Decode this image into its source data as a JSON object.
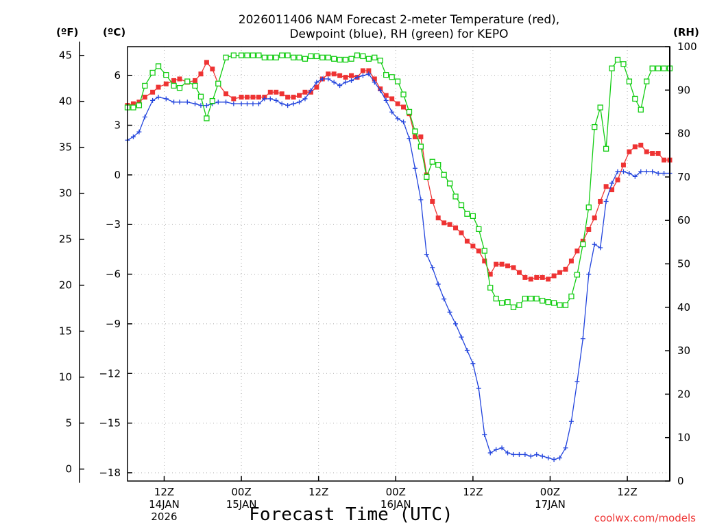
{
  "chart_data": {
    "type": "line",
    "title_lines": [
      "2026011406 NAM Forecast 2-meter Temperature (red),",
      "Dewpoint (blue), RH (green) for KEPO"
    ],
    "xlabel": "Forecast Time (UTC)",
    "credit": "coolwx.com/models",
    "units": {
      "fahrenheit": "(ºF)",
      "celsius": "(ºC)",
      "rh": "(RH)"
    },
    "colors": {
      "temperature": "#ee3333",
      "dewpoint": "#2244dd",
      "rh": "#11cc11",
      "credit": "#ee3333",
      "grid": "#aaaaaa"
    },
    "x_range_hours": [
      7.25,
      77.5
    ],
    "y_left_range_c": [
      -18.5,
      7.75
    ],
    "y_right_range_rh": [
      0,
      100
    ],
    "f_ticks": [
      {
        "value": 45,
        "label": "45"
      },
      {
        "value": 40,
        "label": "40"
      },
      {
        "value": 35,
        "label": "35"
      },
      {
        "value": 30,
        "label": "30"
      },
      {
        "value": 25,
        "label": "25"
      },
      {
        "value": 20,
        "label": "20"
      },
      {
        "value": 15,
        "label": "15"
      },
      {
        "value": 10,
        "label": "10"
      },
      {
        "value": 5,
        "label": "5"
      },
      {
        "value": 0,
        "label": "0"
      }
    ],
    "c_ticks": [
      {
        "value": 6,
        "label": "6"
      },
      {
        "value": 3,
        "label": "3"
      },
      {
        "value": 0,
        "label": "0"
      },
      {
        "value": -3,
        "label": "−3"
      },
      {
        "value": -6,
        "label": "−6"
      },
      {
        "value": -9,
        "label": "−9"
      },
      {
        "value": -12,
        "label": "−12"
      },
      {
        "value": -15,
        "label": "−15"
      },
      {
        "value": -18,
        "label": "−18"
      }
    ],
    "rh_ticks": [
      {
        "value": 100,
        "label": "100"
      },
      {
        "value": 90,
        "label": "90"
      },
      {
        "value": 80,
        "label": "80"
      },
      {
        "value": 70,
        "label": "70"
      },
      {
        "value": 60,
        "label": "60"
      },
      {
        "value": 50,
        "label": "50"
      },
      {
        "value": 40,
        "label": "40"
      },
      {
        "value": 30,
        "label": "30"
      },
      {
        "value": 20,
        "label": "20"
      },
      {
        "value": 10,
        "label": "10"
      },
      {
        "value": 0,
        "label": "0"
      }
    ],
    "x_ticks": [
      {
        "hour": 12,
        "lines": [
          "12Z",
          "14JAN",
          "2026"
        ]
      },
      {
        "hour": 22,
        "lines": [
          "00Z",
          "15JAN"
        ]
      },
      {
        "hour": 32,
        "lines": [
          "12Z"
        ]
      },
      {
        "hour": 42,
        "lines": [
          "00Z",
          "16JAN"
        ]
      },
      {
        "hour": 52,
        "lines": [
          "12Z"
        ]
      },
      {
        "hour": 62,
        "lines": [
          "00Z",
          "17JAN"
        ]
      },
      {
        "hour": 72,
        "lines": [
          "12Z"
        ]
      }
    ],
    "series": [
      {
        "name": "Temperature",
        "unit": "C",
        "marker": "square-filled",
        "points": [
          [
            7.25,
            4.2
          ],
          [
            8,
            4.3
          ],
          [
            8.75,
            4.4
          ],
          [
            9.5,
            4.7
          ],
          [
            10.5,
            5.0
          ],
          [
            11.25,
            5.3
          ],
          [
            12.25,
            5.5
          ],
          [
            13.25,
            5.7
          ],
          [
            14,
            5.8
          ],
          [
            15,
            5.6
          ],
          [
            16,
            5.7
          ],
          [
            16.75,
            6.1
          ],
          [
            17.5,
            6.8
          ],
          [
            18.25,
            6.4
          ],
          [
            19,
            5.5
          ],
          [
            20,
            4.9
          ],
          [
            21,
            4.6
          ],
          [
            22,
            4.7
          ],
          [
            22.75,
            4.7
          ],
          [
            23.5,
            4.7
          ],
          [
            24.25,
            4.7
          ],
          [
            25,
            4.7
          ],
          [
            25.75,
            5.0
          ],
          [
            26.5,
            5.0
          ],
          [
            27.25,
            4.9
          ],
          [
            28,
            4.7
          ],
          [
            28.75,
            4.7
          ],
          [
            29.5,
            4.8
          ],
          [
            30.25,
            5.0
          ],
          [
            31,
            5.0
          ],
          [
            31.75,
            5.3
          ],
          [
            32.5,
            5.8
          ],
          [
            33.25,
            6.1
          ],
          [
            34,
            6.1
          ],
          [
            34.75,
            6.0
          ],
          [
            35.5,
            5.9
          ],
          [
            36.25,
            6.0
          ],
          [
            37,
            5.9
          ],
          [
            37.75,
            6.3
          ],
          [
            38.5,
            6.3
          ],
          [
            39.25,
            5.8
          ],
          [
            40,
            5.2
          ],
          [
            40.75,
            4.8
          ],
          [
            41.5,
            4.6
          ],
          [
            42.25,
            4.3
          ],
          [
            43,
            4.1
          ],
          [
            43.75,
            3.7
          ],
          [
            44.5,
            2.3
          ],
          [
            45.25,
            2.3
          ],
          [
            46,
            0.0
          ],
          [
            46.75,
            -1.6
          ],
          [
            47.5,
            -2.6
          ],
          [
            48.25,
            -2.9
          ],
          [
            49,
            -3.0
          ],
          [
            49.75,
            -3.2
          ],
          [
            50.5,
            -3.5
          ],
          [
            51.25,
            -4.0
          ],
          [
            52,
            -4.3
          ],
          [
            52.75,
            -4.6
          ],
          [
            53.5,
            -5.2
          ],
          [
            54.25,
            -6.0
          ],
          [
            55,
            -5.4
          ],
          [
            55.75,
            -5.4
          ],
          [
            56.5,
            -5.5
          ],
          [
            57.25,
            -5.6
          ],
          [
            58,
            -5.9
          ],
          [
            58.75,
            -6.2
          ],
          [
            59.5,
            -6.3
          ],
          [
            60.25,
            -6.2
          ],
          [
            61,
            -6.2
          ],
          [
            61.75,
            -6.3
          ],
          [
            62.5,
            -6.1
          ],
          [
            63.25,
            -5.9
          ],
          [
            64,
            -5.7
          ],
          [
            64.75,
            -5.2
          ],
          [
            65.5,
            -4.6
          ],
          [
            66.25,
            -4.0
          ],
          [
            67,
            -3.3
          ],
          [
            67.75,
            -2.6
          ],
          [
            68.5,
            -1.6
          ],
          [
            69.25,
            -0.7
          ],
          [
            70,
            -0.9
          ],
          [
            70.75,
            -0.3
          ],
          [
            71.5,
            0.6
          ],
          [
            72.25,
            1.4
          ],
          [
            73,
            1.7
          ],
          [
            73.75,
            1.8
          ],
          [
            74.5,
            1.4
          ],
          [
            75.25,
            1.3
          ],
          [
            76,
            1.3
          ],
          [
            76.75,
            0.9
          ],
          [
            77.5,
            0.9
          ]
        ]
      },
      {
        "name": "Dewpoint",
        "unit": "C",
        "marker": "plus",
        "points": [
          [
            7.25,
            2.1
          ],
          [
            8,
            2.3
          ],
          [
            8.75,
            2.6
          ],
          [
            9.5,
            3.5
          ],
          [
            10.5,
            4.5
          ],
          [
            11.25,
            4.7
          ],
          [
            12.25,
            4.6
          ],
          [
            13.25,
            4.4
          ],
          [
            14,
            4.4
          ],
          [
            15,
            4.4
          ],
          [
            16,
            4.3
          ],
          [
            16.75,
            4.2
          ],
          [
            17.5,
            4.2
          ],
          [
            18.25,
            4.3
          ],
          [
            19,
            4.4
          ],
          [
            20,
            4.4
          ],
          [
            21,
            4.3
          ],
          [
            22,
            4.3
          ],
          [
            22.75,
            4.3
          ],
          [
            23.5,
            4.3
          ],
          [
            24.25,
            4.3
          ],
          [
            25,
            4.6
          ],
          [
            25.75,
            4.6
          ],
          [
            26.5,
            4.5
          ],
          [
            27.25,
            4.3
          ],
          [
            28,
            4.2
          ],
          [
            28.75,
            4.3
          ],
          [
            29.5,
            4.4
          ],
          [
            30.25,
            4.6
          ],
          [
            31,
            5.1
          ],
          [
            31.75,
            5.6
          ],
          [
            32.5,
            5.8
          ],
          [
            33.25,
            5.8
          ],
          [
            34,
            5.6
          ],
          [
            34.75,
            5.4
          ],
          [
            35.5,
            5.6
          ],
          [
            36.25,
            5.7
          ],
          [
            37,
            5.9
          ],
          [
            37.75,
            6.0
          ],
          [
            38.5,
            6.1
          ],
          [
            39.25,
            5.6
          ],
          [
            40,
            5.1
          ],
          [
            40.75,
            4.5
          ],
          [
            41.5,
            3.8
          ],
          [
            42.25,
            3.4
          ],
          [
            43,
            3.2
          ],
          [
            43.75,
            2.2
          ],
          [
            44.5,
            0.4
          ],
          [
            45.25,
            -1.5
          ],
          [
            46,
            -4.8
          ],
          [
            46.75,
            -5.6
          ],
          [
            47.5,
            -6.6
          ],
          [
            48.25,
            -7.5
          ],
          [
            49,
            -8.3
          ],
          [
            49.75,
            -9.0
          ],
          [
            50.5,
            -9.8
          ],
          [
            51.25,
            -10.6
          ],
          [
            52,
            -11.4
          ],
          [
            52.75,
            -12.9
          ],
          [
            53.5,
            -15.7
          ],
          [
            54.25,
            -16.8
          ],
          [
            55,
            -16.6
          ],
          [
            55.75,
            -16.5
          ],
          [
            56.5,
            -16.8
          ],
          [
            57.25,
            -16.9
          ],
          [
            58,
            -16.9
          ],
          [
            58.75,
            -16.9
          ],
          [
            59.5,
            -17.0
          ],
          [
            60.25,
            -16.9
          ],
          [
            61,
            -17.0
          ],
          [
            61.75,
            -17.1
          ],
          [
            62.5,
            -17.2
          ],
          [
            63.25,
            -17.1
          ],
          [
            64,
            -16.5
          ],
          [
            64.75,
            -14.9
          ],
          [
            65.5,
            -12.5
          ],
          [
            66.25,
            -9.9
          ],
          [
            67,
            -6.0
          ],
          [
            67.75,
            -4.2
          ],
          [
            68.5,
            -4.4
          ],
          [
            69.25,
            -1.6
          ],
          [
            70,
            -0.5
          ],
          [
            70.75,
            0.2
          ],
          [
            71.5,
            0.2
          ],
          [
            72.25,
            0.1
          ],
          [
            73,
            -0.1
          ],
          [
            73.75,
            0.2
          ],
          [
            74.5,
            0.2
          ],
          [
            75.25,
            0.2
          ],
          [
            76,
            0.1
          ],
          [
            76.75,
            0.1
          ],
          [
            77.5,
            0.1
          ]
        ]
      },
      {
        "name": "RH",
        "unit": "%",
        "marker": "square-open",
        "points": [
          [
            7.25,
            86
          ],
          [
            8,
            86
          ],
          [
            8.75,
            86.5
          ],
          [
            9.5,
            91
          ],
          [
            10.5,
            94
          ],
          [
            11.25,
            95.5
          ],
          [
            12.25,
            93.5
          ],
          [
            13.25,
            91
          ],
          [
            14,
            90.5
          ],
          [
            15,
            92
          ],
          [
            16,
            91
          ],
          [
            16.75,
            88.5
          ],
          [
            17.5,
            83.5
          ],
          [
            18.25,
            87.5
          ],
          [
            19,
            91.5
          ],
          [
            20,
            97.5
          ],
          [
            21,
            98
          ],
          [
            22,
            98
          ],
          [
            22.75,
            98
          ],
          [
            23.5,
            98
          ],
          [
            24.25,
            98
          ],
          [
            25,
            97.5
          ],
          [
            25.75,
            97.5
          ],
          [
            26.5,
            97.5
          ],
          [
            27.25,
            98
          ],
          [
            28,
            98
          ],
          [
            28.75,
            97.5
          ],
          [
            29.5,
            97.5
          ],
          [
            30.25,
            97.2
          ],
          [
            31,
            97.8
          ],
          [
            31.75,
            97.8
          ],
          [
            32.5,
            97.5
          ],
          [
            33.25,
            97.5
          ],
          [
            34,
            97.2
          ],
          [
            34.75,
            97
          ],
          [
            35.5,
            97
          ],
          [
            36.25,
            97.2
          ],
          [
            37,
            98
          ],
          [
            37.75,
            97.8
          ],
          [
            38.5,
            97.2
          ],
          [
            39.25,
            97.5
          ],
          [
            40,
            96.8
          ],
          [
            40.75,
            93.5
          ],
          [
            41.5,
            93
          ],
          [
            42.25,
            92
          ],
          [
            43,
            89
          ],
          [
            43.75,
            85
          ],
          [
            44.5,
            80.5
          ],
          [
            45.25,
            77
          ],
          [
            46,
            70
          ],
          [
            46.75,
            73.5
          ],
          [
            47.5,
            72.8
          ],
          [
            48.25,
            70.5
          ],
          [
            49,
            68.5
          ],
          [
            49.75,
            65.5
          ],
          [
            50.5,
            63.5
          ],
          [
            51.25,
            61.5
          ],
          [
            52,
            61
          ],
          [
            52.75,
            58
          ],
          [
            53.5,
            53
          ],
          [
            54.25,
            44.5
          ],
          [
            55,
            42
          ],
          [
            55.75,
            41
          ],
          [
            56.5,
            41.2
          ],
          [
            57.25,
            40
          ],
          [
            58,
            40.5
          ],
          [
            58.75,
            42
          ],
          [
            59.5,
            42
          ],
          [
            60.25,
            42
          ],
          [
            61,
            41.5
          ],
          [
            61.75,
            41.2
          ],
          [
            62.5,
            41
          ],
          [
            63.25,
            40.5
          ],
          [
            64,
            40.5
          ],
          [
            64.75,
            42.5
          ],
          [
            65.5,
            47.5
          ],
          [
            66.25,
            54.5
          ],
          [
            67,
            63
          ],
          [
            67.75,
            81.5
          ],
          [
            68.5,
            86
          ],
          [
            69.25,
            76.5
          ],
          [
            70,
            95
          ],
          [
            70.75,
            97
          ],
          [
            71.5,
            96
          ],
          [
            72.25,
            92
          ],
          [
            73,
            88
          ],
          [
            73.75,
            85.5
          ],
          [
            74.5,
            92
          ],
          [
            75.25,
            95
          ],
          [
            76,
            95
          ],
          [
            76.75,
            95
          ],
          [
            77.5,
            95
          ]
        ]
      }
    ]
  }
}
